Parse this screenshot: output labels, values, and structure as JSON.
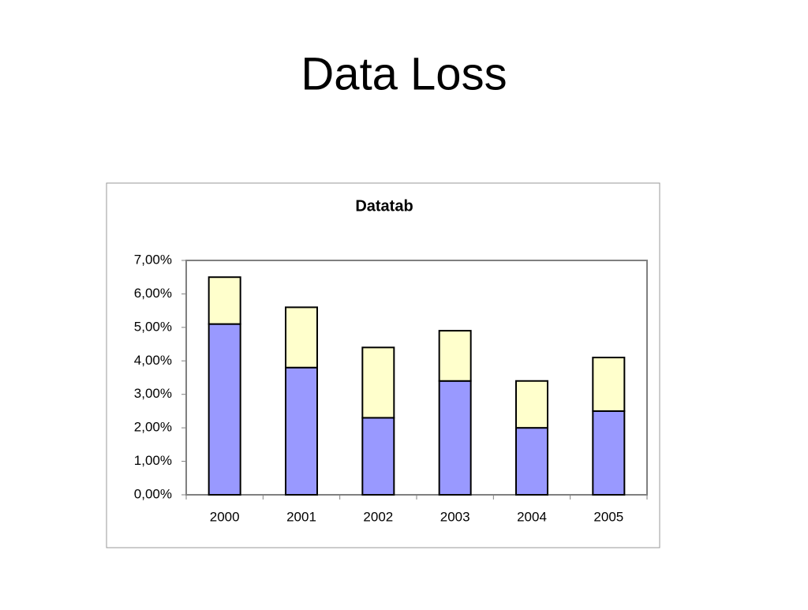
{
  "slide": {
    "title": "Data Loss"
  },
  "chart_data": {
    "type": "stacked-bar",
    "title": "Datatab",
    "categories": [
      "2000",
      "2001",
      "2002",
      "2003",
      "2004",
      "2005"
    ],
    "series": [
      {
        "color": "#9999ff",
        "values": [
          5.1,
          3.8,
          2.3,
          3.4,
          2.0,
          2.5
        ]
      },
      {
        "color": "#ffffcc",
        "values": [
          1.4,
          1.8,
          2.1,
          1.5,
          1.4,
          1.6
        ]
      }
    ],
    "ylim": [
      0,
      7
    ],
    "yticks": [
      {
        "value": 0,
        "label": "0,00%"
      },
      {
        "value": 1,
        "label": "1,00%"
      },
      {
        "value": 2,
        "label": "2,00%"
      },
      {
        "value": 3,
        "label": "3,00%"
      },
      {
        "value": 4,
        "label": "4,00%"
      },
      {
        "value": 5,
        "label": "5,00%"
      },
      {
        "value": 6,
        "label": "6,00%"
      },
      {
        "value": 7,
        "label": "7,00%"
      }
    ],
    "grid": false
  }
}
